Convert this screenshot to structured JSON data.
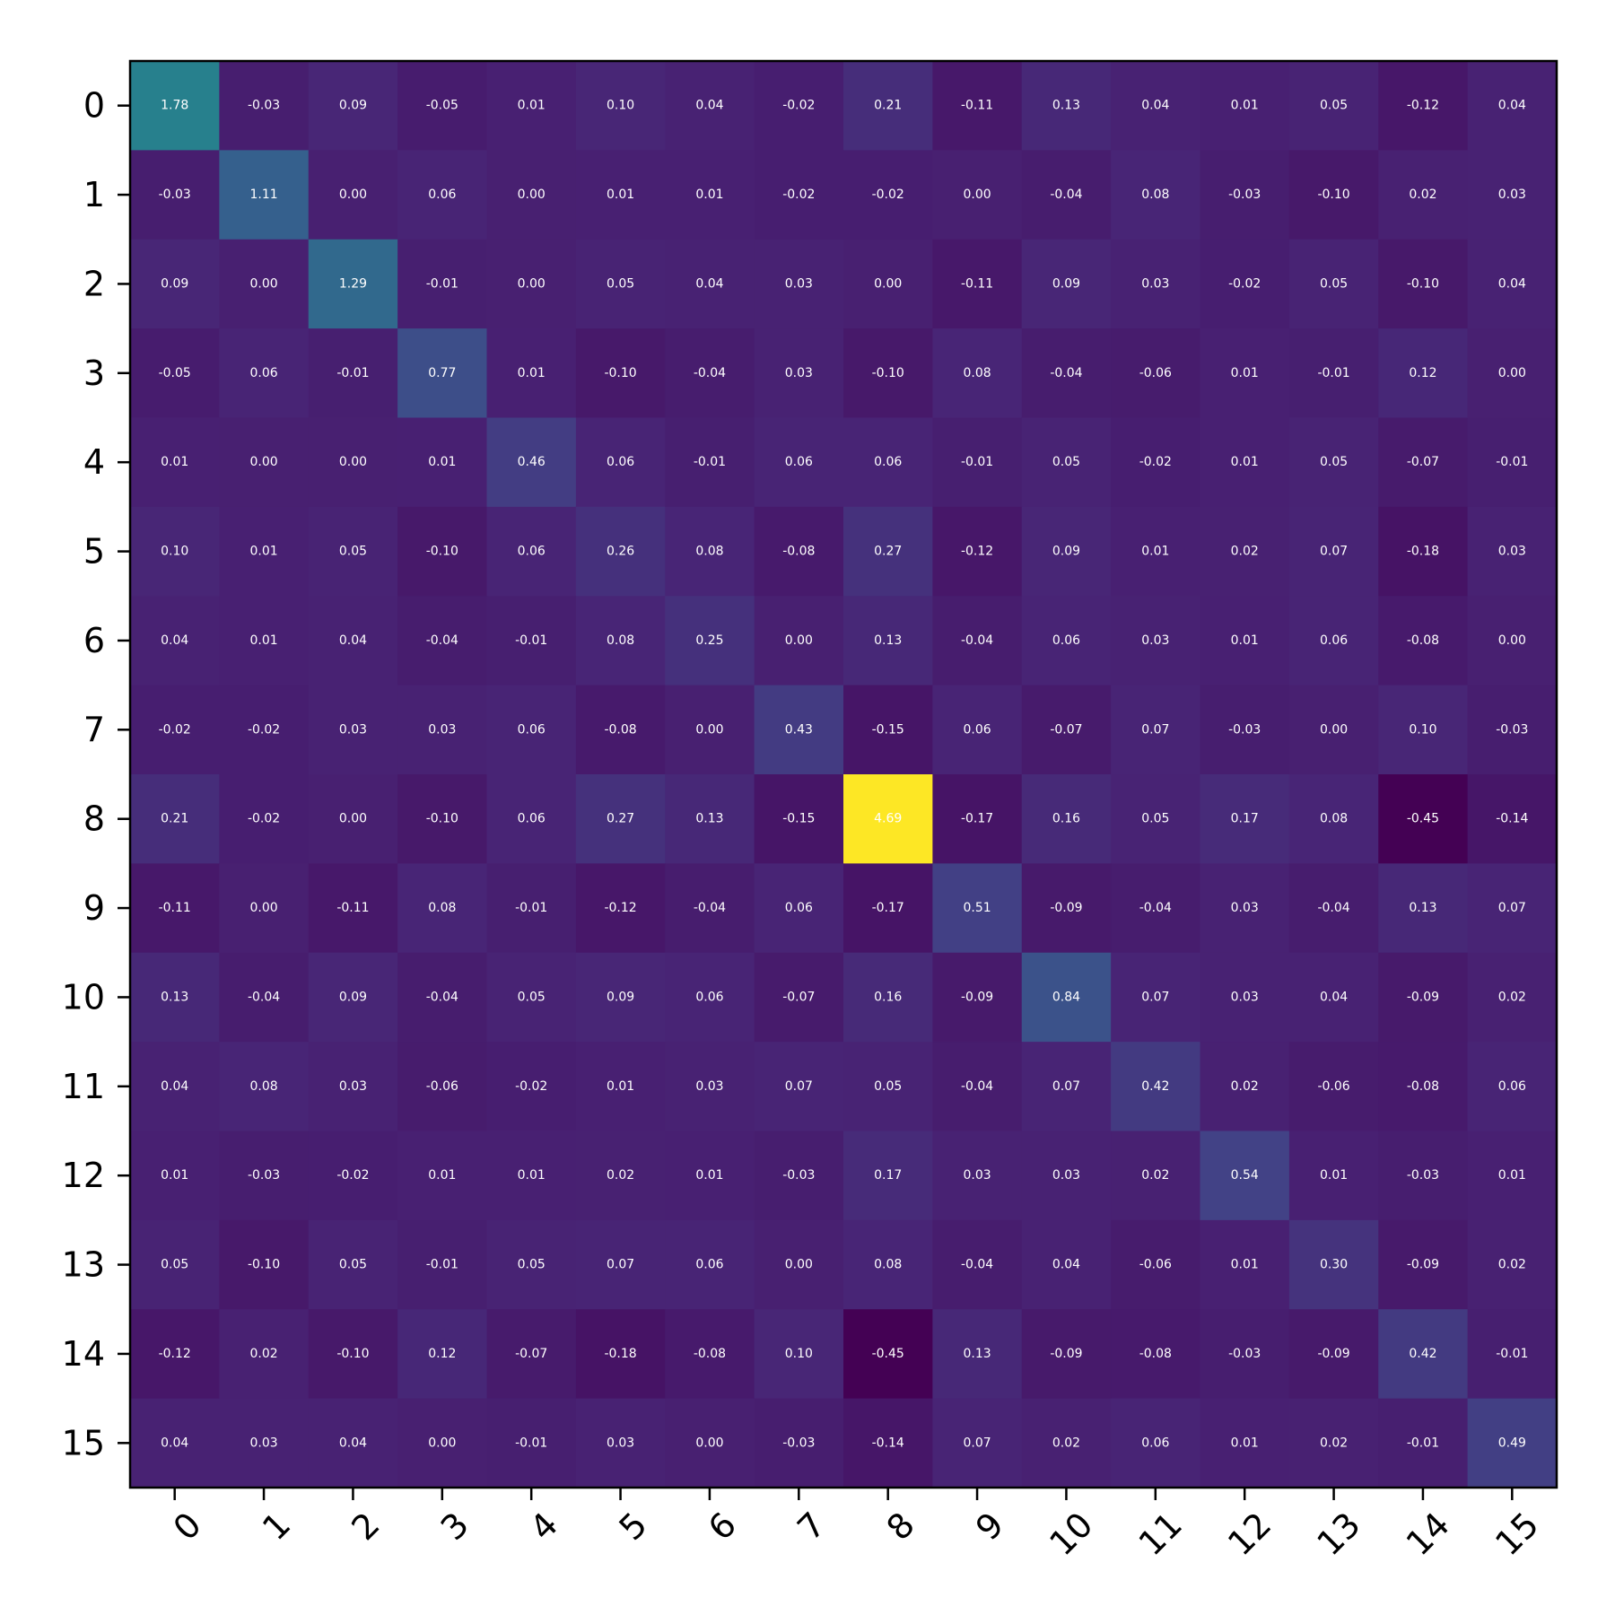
{
  "chart_data": {
    "type": "heatmap",
    "title": "",
    "xlabel": "",
    "ylabel": "",
    "x_categories": [
      "0",
      "1",
      "2",
      "3",
      "4",
      "5",
      "6",
      "7",
      "8",
      "9",
      "10",
      "11",
      "12",
      "13",
      "14",
      "15"
    ],
    "y_categories": [
      "0",
      "1",
      "2",
      "3",
      "4",
      "5",
      "6",
      "7",
      "8",
      "9",
      "10",
      "11",
      "12",
      "13",
      "14",
      "15"
    ],
    "colormap": "viridis",
    "color_range": [
      -0.45,
      4.69
    ],
    "cell_text_color": "#ffffff",
    "grid": false,
    "values": [
      [
        1.78,
        -0.03,
        0.09,
        -0.05,
        0.01,
        0.1,
        0.04,
        -0.02,
        0.21,
        -0.11,
        0.13,
        0.04,
        0.01,
        0.05,
        -0.12,
        0.04
      ],
      [
        -0.03,
        1.11,
        -0.0,
        0.06,
        0.0,
        0.01,
        0.01,
        -0.02,
        -0.02,
        -0.0,
        -0.04,
        0.08,
        -0.03,
        -0.1,
        0.02,
        0.03
      ],
      [
        0.09,
        -0.0,
        1.29,
        -0.01,
        -0.0,
        0.05,
        0.04,
        0.03,
        0.0,
        -0.11,
        0.09,
        0.03,
        -0.02,
        0.05,
        -0.1,
        0.04
      ],
      [
        -0.05,
        0.06,
        -0.01,
        0.77,
        0.01,
        -0.1,
        -0.04,
        0.03,
        -0.1,
        0.08,
        -0.04,
        -0.06,
        0.01,
        -0.01,
        0.12,
        0.0
      ],
      [
        0.01,
        0.0,
        -0.0,
        0.01,
        0.46,
        0.06,
        -0.01,
        0.06,
        0.06,
        -0.01,
        0.05,
        -0.02,
        0.01,
        0.05,
        -0.07,
        -0.01
      ],
      [
        0.1,
        0.01,
        0.05,
        -0.1,
        0.06,
        0.26,
        0.08,
        -0.08,
        0.27,
        -0.12,
        0.09,
        0.01,
        0.02,
        0.07,
        -0.18,
        0.03
      ],
      [
        0.04,
        0.01,
        0.04,
        -0.04,
        -0.01,
        0.08,
        0.25,
        0.0,
        0.13,
        -0.04,
        0.06,
        0.03,
        0.01,
        0.06,
        -0.08,
        0.0
      ],
      [
        -0.02,
        -0.02,
        0.03,
        0.03,
        0.06,
        -0.08,
        0.0,
        0.43,
        -0.15,
        0.06,
        -0.07,
        0.07,
        -0.03,
        0.0,
        0.1,
        -0.03
      ],
      [
        0.21,
        -0.02,
        0.0,
        -0.1,
        0.06,
        0.27,
        0.13,
        -0.15,
        4.69,
        -0.17,
        0.16,
        0.05,
        0.17,
        0.08,
        -0.45,
        -0.14
      ],
      [
        -0.11,
        -0.0,
        -0.11,
        0.08,
        -0.01,
        -0.12,
        -0.04,
        0.06,
        -0.17,
        0.51,
        -0.09,
        -0.04,
        0.03,
        -0.04,
        0.13,
        0.07
      ],
      [
        0.13,
        -0.04,
        0.09,
        -0.04,
        0.05,
        0.09,
        0.06,
        -0.07,
        0.16,
        -0.09,
        0.84,
        0.07,
        0.03,
        0.04,
        -0.09,
        0.02
      ],
      [
        0.04,
        0.08,
        0.03,
        -0.06,
        -0.02,
        0.01,
        0.03,
        0.07,
        0.05,
        -0.04,
        0.07,
        0.42,
        0.02,
        -0.06,
        -0.08,
        0.06
      ],
      [
        0.01,
        -0.03,
        -0.02,
        0.01,
        0.01,
        0.02,
        0.01,
        -0.03,
        0.17,
        0.03,
        0.03,
        0.02,
        0.54,
        0.01,
        -0.03,
        0.01
      ],
      [
        0.05,
        -0.1,
        0.05,
        -0.01,
        0.05,
        0.07,
        0.06,
        0.0,
        0.08,
        -0.04,
        0.04,
        -0.06,
        0.01,
        0.3,
        -0.09,
        0.02
      ],
      [
        -0.12,
        0.02,
        -0.1,
        0.12,
        -0.07,
        -0.18,
        -0.08,
        0.1,
        -0.45,
        0.13,
        -0.09,
        -0.08,
        -0.03,
        -0.09,
        0.42,
        -0.01
      ],
      [
        0.04,
        0.03,
        0.04,
        0.0,
        -0.01,
        0.03,
        0.0,
        -0.03,
        -0.14,
        0.07,
        0.02,
        0.06,
        0.01,
        0.02,
        -0.01,
        0.49
      ]
    ]
  }
}
